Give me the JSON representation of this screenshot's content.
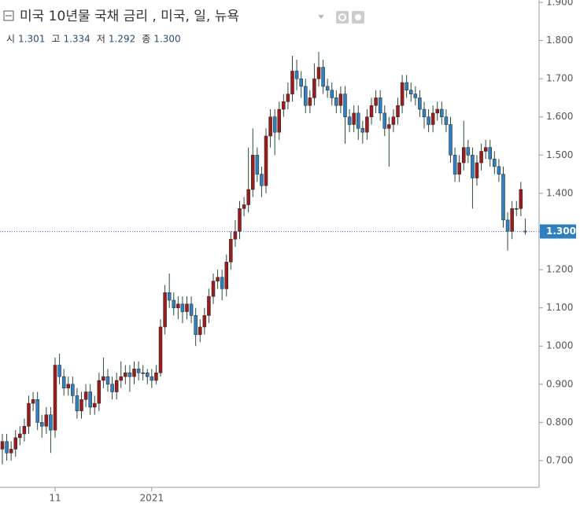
{
  "chart_data": {
    "type": "candlestick",
    "title": "미국 10년물 국채 금리 , 미국, 일, 뉴욕",
    "header": [
      {
        "name": "시",
        "value": "1.301"
      },
      {
        "name": "고",
        "value": "1.334"
      },
      {
        "name": "저",
        "value": "1.292"
      },
      {
        "name": "종",
        "value": "1.300"
      }
    ],
    "categories": [
      null,
      null,
      null,
      null,
      null,
      null,
      null,
      null,
      null,
      null,
      null,
      null,
      "11",
      null,
      null,
      null,
      null,
      null,
      null,
      null,
      null,
      null,
      null,
      null,
      null,
      null,
      null,
      null,
      null,
      null,
      null,
      null,
      null,
      null,
      "2021",
      null,
      null,
      null,
      null,
      null,
      null,
      null,
      null,
      null,
      null,
      null,
      null,
      null,
      null,
      null,
      null,
      null,
      null,
      null,
      null,
      null,
      null,
      null,
      null,
      null,
      null,
      null,
      null,
      null,
      null,
      null,
      null,
      null,
      null,
      null,
      null,
      null,
      null,
      null,
      null,
      null,
      null,
      null,
      null,
      null,
      null,
      null,
      null,
      null,
      null,
      null,
      null,
      null,
      null,
      null,
      null,
      null,
      null,
      null,
      null,
      null,
      null,
      null,
      null,
      null,
      null,
      null,
      null,
      null,
      null,
      null,
      null,
      null,
      null,
      null,
      null,
      null,
      null,
      null,
      null,
      null,
      null,
      null,
      null,
      null
    ],
    "open": [
      0.73,
      0.75,
      0.72,
      0.73,
      0.76,
      0.77,
      0.79,
      0.85,
      0.86,
      0.8,
      0.79,
      0.82,
      0.78,
      0.95,
      0.92,
      0.89,
      0.9,
      0.87,
      0.83,
      0.86,
      0.88,
      0.84,
      0.85,
      0.91,
      0.92,
      0.9,
      0.88,
      0.91,
      0.92,
      0.93,
      0.92,
      0.94,
      0.93,
      0.93,
      0.92,
      0.91,
      0.93,
      1.05,
      1.14,
      1.12,
      1.1,
      1.11,
      1.09,
      1.11,
      1.08,
      1.03,
      1.05,
      1.08,
      1.13,
      1.17,
      1.18,
      1.15,
      1.22,
      1.28,
      1.3,
      1.36,
      1.37,
      1.41,
      1.5,
      1.45,
      1.42,
      1.55,
      1.6,
      1.56,
      1.62,
      1.64,
      1.66,
      1.72,
      1.7,
      1.68,
      1.63,
      1.65,
      1.7,
      1.73,
      1.68,
      1.67,
      1.65,
      1.63,
      1.66,
      1.6,
      1.58,
      1.61,
      1.57,
      1.56,
      1.6,
      1.63,
      1.65,
      1.61,
      1.57,
      1.58,
      1.6,
      1.63,
      1.69,
      1.67,
      1.66,
      1.65,
      1.62,
      1.6,
      1.58,
      1.61,
      1.62,
      1.6,
      1.58,
      1.5,
      1.45,
      1.48,
      1.52,
      1.5,
      1.44,
      1.48,
      1.51,
      1.52,
      1.49,
      1.47,
      1.45,
      1.33,
      1.3,
      1.36,
      1.36,
      1.301
    ],
    "high": [
      0.77,
      0.77,
      0.75,
      0.78,
      0.79,
      0.81,
      0.87,
      0.88,
      0.88,
      0.82,
      0.84,
      0.84,
      0.97,
      0.98,
      0.94,
      0.92,
      0.92,
      0.89,
      0.88,
      0.9,
      0.9,
      0.87,
      0.93,
      0.97,
      0.94,
      0.92,
      0.93,
      0.96,
      0.95,
      0.95,
      0.96,
      0.96,
      0.95,
      0.94,
      0.94,
      0.95,
      1.07,
      1.16,
      1.19,
      1.14,
      1.13,
      1.13,
      1.13,
      1.13,
      1.1,
      1.07,
      1.1,
      1.15,
      1.19,
      1.2,
      1.2,
      1.24,
      1.3,
      1.33,
      1.38,
      1.39,
      1.52,
      1.57,
      1.52,
      1.47,
      1.57,
      1.62,
      1.62,
      1.64,
      1.66,
      1.69,
      1.76,
      1.75,
      1.72,
      1.7,
      1.67,
      1.74,
      1.77,
      1.75,
      1.7,
      1.69,
      1.67,
      1.68,
      1.68,
      1.62,
      1.63,
      1.63,
      1.59,
      1.62,
      1.65,
      1.67,
      1.67,
      1.63,
      1.6,
      1.62,
      1.65,
      1.71,
      1.71,
      1.69,
      1.68,
      1.67,
      1.64,
      1.62,
      1.63,
      1.64,
      1.64,
      1.62,
      1.6,
      1.52,
      1.5,
      1.59,
      1.54,
      1.52,
      1.5,
      1.53,
      1.54,
      1.54,
      1.51,
      1.49,
      1.47,
      1.35,
      1.38,
      1.38,
      1.43,
      1.334
    ],
    "low": [
      0.69,
      0.7,
      0.7,
      0.71,
      0.74,
      0.75,
      0.77,
      0.83,
      0.78,
      0.76,
      0.77,
      0.72,
      0.76,
      0.9,
      0.87,
      0.87,
      0.85,
      0.81,
      0.81,
      0.84,
      0.82,
      0.82,
      0.83,
      0.89,
      0.88,
      0.86,
      0.86,
      0.89,
      0.9,
      0.88,
      0.9,
      0.91,
      0.91,
      0.9,
      0.89,
      0.9,
      0.92,
      1.03,
      1.1,
      1.08,
      1.07,
      1.06,
      1.07,
      1.06,
      1.0,
      1.01,
      1.03,
      1.06,
      1.11,
      1.15,
      1.12,
      1.13,
      1.2,
      1.26,
      1.28,
      1.34,
      1.35,
      1.39,
      1.43,
      1.39,
      1.4,
      1.52,
      1.5,
      1.54,
      1.6,
      1.62,
      1.64,
      1.67,
      1.65,
      1.61,
      1.61,
      1.63,
      1.68,
      1.66,
      1.65,
      1.63,
      1.61,
      1.61,
      1.53,
      1.56,
      1.56,
      1.54,
      1.53,
      1.54,
      1.58,
      1.61,
      1.59,
      1.55,
      1.47,
      1.56,
      1.58,
      1.61,
      1.65,
      1.64,
      1.63,
      1.6,
      1.57,
      1.56,
      1.56,
      1.59,
      1.58,
      1.56,
      1.48,
      1.43,
      1.43,
      1.46,
      1.48,
      1.36,
      1.42,
      1.46,
      1.49,
      1.47,
      1.45,
      1.43,
      1.31,
      1.25,
      1.28,
      1.34,
      1.34,
      1.292
    ],
    "close": [
      0.75,
      0.72,
      0.73,
      0.76,
      0.77,
      0.79,
      0.85,
      0.86,
      0.8,
      0.79,
      0.82,
      0.78,
      0.95,
      0.92,
      0.89,
      0.9,
      0.87,
      0.83,
      0.86,
      0.88,
      0.84,
      0.85,
      0.91,
      0.92,
      0.9,
      0.88,
      0.91,
      0.92,
      0.93,
      0.92,
      0.94,
      0.93,
      0.93,
      0.92,
      0.91,
      0.93,
      1.05,
      1.14,
      1.12,
      1.1,
      1.11,
      1.09,
      1.11,
      1.08,
      1.03,
      1.05,
      1.08,
      1.13,
      1.17,
      1.18,
      1.15,
      1.22,
      1.28,
      1.3,
      1.36,
      1.37,
      1.41,
      1.5,
      1.45,
      1.42,
      1.55,
      1.6,
      1.56,
      1.62,
      1.64,
      1.66,
      1.72,
      1.7,
      1.68,
      1.63,
      1.65,
      1.7,
      1.73,
      1.68,
      1.67,
      1.65,
      1.63,
      1.66,
      1.6,
      1.58,
      1.61,
      1.57,
      1.56,
      1.6,
      1.63,
      1.65,
      1.61,
      1.57,
      1.58,
      1.6,
      1.63,
      1.69,
      1.67,
      1.66,
      1.65,
      1.62,
      1.6,
      1.58,
      1.61,
      1.62,
      1.6,
      1.58,
      1.5,
      1.45,
      1.48,
      1.52,
      1.5,
      1.44,
      1.48,
      1.51,
      1.52,
      1.49,
      1.47,
      1.45,
      1.33,
      1.3,
      1.36,
      1.36,
      1.41,
      1.3
    ],
    "up_color": "#9b1c1c",
    "down_color": "#2f7fc1",
    "ylim": [
      0.63,
      1.9
    ],
    "yticks": [
      {
        "value": 0.7,
        "label": "0.700"
      },
      {
        "value": 0.8,
        "label": "0.800"
      },
      {
        "value": 0.9,
        "label": "0.900"
      },
      {
        "value": 1.0,
        "label": "1.000"
      },
      {
        "value": 1.1,
        "label": "1.100"
      },
      {
        "value": 1.2,
        "label": "1.200"
      },
      {
        "value": 1.3,
        "label": "1.300"
      },
      {
        "value": 1.4,
        "label": "1.400"
      },
      {
        "value": 1.5,
        "label": "1.500"
      },
      {
        "value": 1.6,
        "label": "1.600"
      },
      {
        "value": 1.7,
        "label": "1.700"
      },
      {
        "value": 1.8,
        "label": "1.800"
      },
      {
        "value": 1.9,
        "label": "1.900"
      }
    ],
    "last_price": {
      "value": 1.3,
      "label": "1.300"
    }
  }
}
